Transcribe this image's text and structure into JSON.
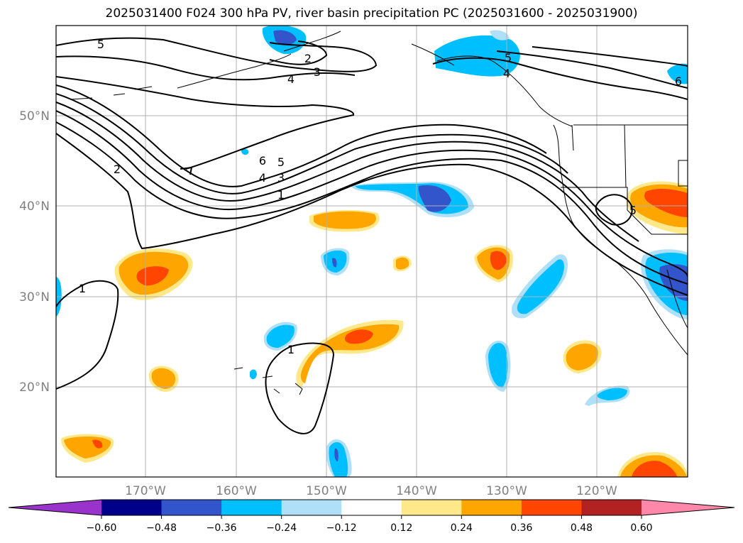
{
  "title": "2025031400 F024 300 hPa PV, river basin precipitation PC (2025031600 - 2025031900)",
  "lat_labels": [
    "50°N",
    "40°N",
    "30°N",
    "20°N"
  ],
  "lon_labels": [
    "170°W",
    "160°W",
    "150°W",
    "140°W",
    "130°W",
    "120°W"
  ],
  "colorbar": {
    "ticks": [
      "−0.60",
      "−0.48",
      "−0.36",
      "−0.24",
      "−0.12",
      "0.12",
      "0.24",
      "0.36",
      "0.48",
      "0.60"
    ],
    "colors": [
      "#9933cc",
      "#00008b",
      "#3355cc",
      "#00bfff",
      "#b0e0f8",
      "#ffffff",
      "#ffe88a",
      "#ffa500",
      "#ff4500",
      "#b22222",
      "#ff88aa"
    ]
  },
  "contour_labels": [
    "5",
    "2",
    "3",
    "4",
    "5",
    "4",
    "6",
    "5",
    "4",
    "3",
    "1",
    "2",
    "1",
    "1",
    "5",
    "6"
  ],
  "colors": {
    "grid": "#b0b0b0",
    "contour": "#000000",
    "coast": "#000000"
  }
}
